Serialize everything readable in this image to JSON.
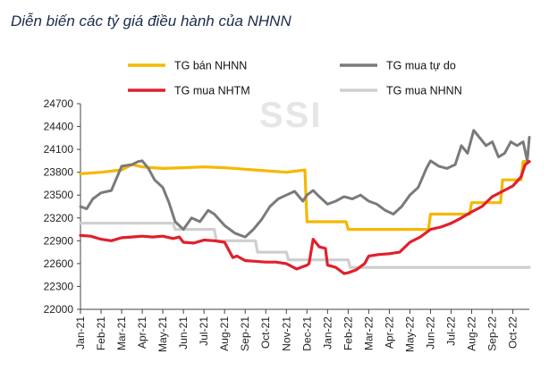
{
  "title": "Diễn biến các tỷ giá điều hành của NHNN",
  "watermark": "SSI",
  "chart_data": {
    "type": "line",
    "title": "Diễn biến các tỷ giá điều hành của NHNN",
    "xlabel": "",
    "ylabel": "",
    "ylim": [
      22000,
      24700
    ],
    "yticks": [
      22000,
      22300,
      22600,
      22900,
      23200,
      23500,
      23800,
      24100,
      24400,
      24700
    ],
    "categories": [
      "Jan-21",
      "Feb-21",
      "Mar-21",
      "Apr-21",
      "May-21",
      "Jun-21",
      "Jul-21",
      "Aug-21",
      "Sep-21",
      "Oct-21",
      "Nov-21",
      "Dec-21",
      "Jan-22",
      "Feb-22",
      "Mar-22",
      "Apr-22",
      "May-22",
      "Jun-22",
      "Jul-22",
      "Aug-22",
      "Sep-22",
      "Oct-22"
    ],
    "legend_position": "top",
    "series": [
      {
        "name": "TG bán NHNN",
        "color": "#f5b800",
        "x": [
          0,
          1,
          2,
          2.5,
          3,
          3.5,
          4,
          5,
          6,
          7,
          8,
          9,
          10,
          10.9,
          11,
          11.1,
          12,
          12.9,
          13,
          14,
          15,
          16,
          16.9,
          17,
          18,
          18.9,
          19,
          20,
          20.4,
          20.5,
          21,
          21.4,
          21.5,
          21.8
        ],
        "values": [
          23780,
          23800,
          23830,
          23900,
          23870,
          23860,
          23850,
          23860,
          23870,
          23860,
          23840,
          23820,
          23800,
          23830,
          23150,
          23150,
          23150,
          23150,
          23050,
          23050,
          23050,
          23050,
          23050,
          23250,
          23250,
          23250,
          23400,
          23400,
          23400,
          23700,
          23700,
          23700,
          23940,
          23940
        ]
      },
      {
        "name": "TG mua tự do",
        "color": "#7a7a7a",
        "x": [
          0,
          0.3,
          0.6,
          1,
          1.5,
          2,
          2.5,
          2.8,
          3,
          3.3,
          3.6,
          4,
          4.3,
          4.6,
          5,
          5.4,
          5.8,
          6.2,
          6.5,
          7,
          7.5,
          8,
          8.4,
          8.8,
          9.2,
          9.6,
          10,
          10.4,
          10.8,
          11,
          11.3,
          11.6,
          12,
          12.4,
          12.8,
          13.2,
          13.6,
          14,
          14.4,
          14.8,
          15.2,
          15.6,
          16,
          16.4,
          16.8,
          17,
          17.4,
          17.8,
          18.2,
          18.5,
          18.8,
          19.1,
          19.4,
          19.7,
          20,
          20.3,
          20.6,
          20.9,
          21.2,
          21.5,
          21.7,
          21.8
        ],
        "values": [
          23350,
          23320,
          23450,
          23530,
          23560,
          23880,
          23900,
          23940,
          23950,
          23850,
          23700,
          23600,
          23400,
          23150,
          23050,
          23200,
          23150,
          23300,
          23250,
          23100,
          23000,
          22950,
          23050,
          23180,
          23350,
          23450,
          23500,
          23550,
          23420,
          23500,
          23560,
          23480,
          23380,
          23420,
          23480,
          23450,
          23500,
          23420,
          23380,
          23300,
          23250,
          23350,
          23500,
          23600,
          23850,
          23950,
          23880,
          23850,
          23900,
          24150,
          24050,
          24350,
          24250,
          24150,
          24200,
          24000,
          24050,
          24200,
          24150,
          24200,
          23950,
          24260
        ]
      },
      {
        "name": "TG mua NHTM",
        "color": "#e0202c",
        "x": [
          0,
          0.5,
          1,
          1.5,
          2,
          2.5,
          3,
          3.5,
          4,
          4.5,
          4.8,
          5,
          5.5,
          6,
          6.5,
          7,
          7.4,
          7.6,
          8,
          8.5,
          9,
          9.5,
          10,
          10.5,
          11,
          11.1,
          11.3,
          11.6,
          11.9,
          12,
          12.4,
          12.8,
          13,
          13.4,
          13.8,
          14,
          14.5,
          15,
          15.5,
          16,
          16.5,
          17,
          17.5,
          18,
          18.5,
          19,
          19.5,
          20,
          20.5,
          21,
          21.4,
          21.6,
          21.8
        ],
        "values": [
          22970,
          22960,
          22920,
          22900,
          22940,
          22950,
          22960,
          22950,
          22960,
          22930,
          22950,
          22880,
          22870,
          22910,
          22900,
          22880,
          22680,
          22700,
          22640,
          22630,
          22620,
          22620,
          22600,
          22530,
          22580,
          22600,
          22920,
          22820,
          22800,
          22580,
          22550,
          22470,
          22480,
          22520,
          22600,
          22700,
          22720,
          22730,
          22750,
          22880,
          22950,
          23050,
          23080,
          23130,
          23200,
          23280,
          23350,
          23480,
          23550,
          23620,
          23740,
          23900,
          23940
        ]
      },
      {
        "name": "TG mua NHNN",
        "color": "#cfcfcf",
        "x": [
          0,
          4.5,
          4.6,
          6.5,
          6.6,
          8.5,
          8.6,
          10,
          10.1,
          13,
          13.1,
          15.1,
          15.2,
          21.8
        ],
        "values": [
          23130,
          23130,
          23050,
          23050,
          22900,
          22900,
          22750,
          22750,
          22650,
          22650,
          22550,
          22550,
          22550,
          22550
        ]
      }
    ]
  }
}
